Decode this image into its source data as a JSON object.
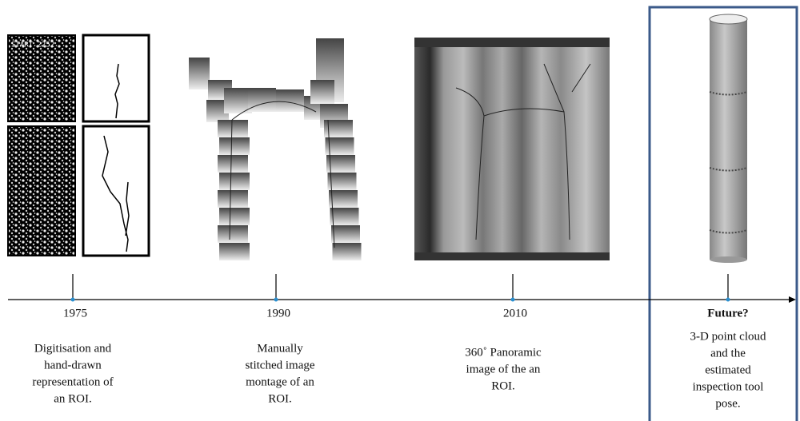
{
  "timeline": {
    "image_text": "START 2252",
    "events": [
      {
        "year": "1975",
        "description": [
          "Digitisation and",
          "hand-drawn",
          "representation of",
          "an ROI."
        ]
      },
      {
        "year": "1990",
        "description": [
          "Manually",
          "stitched image",
          "montage of an",
          "ROI."
        ]
      },
      {
        "year": "2010",
        "description": [
          "360˚ Panoramic",
          "image of the an",
          "ROI."
        ]
      },
      {
        "year": "Future?",
        "description": [
          "3-D point cloud",
          "and the",
          "estimated",
          "inspection tool",
          "pose."
        ]
      }
    ]
  }
}
